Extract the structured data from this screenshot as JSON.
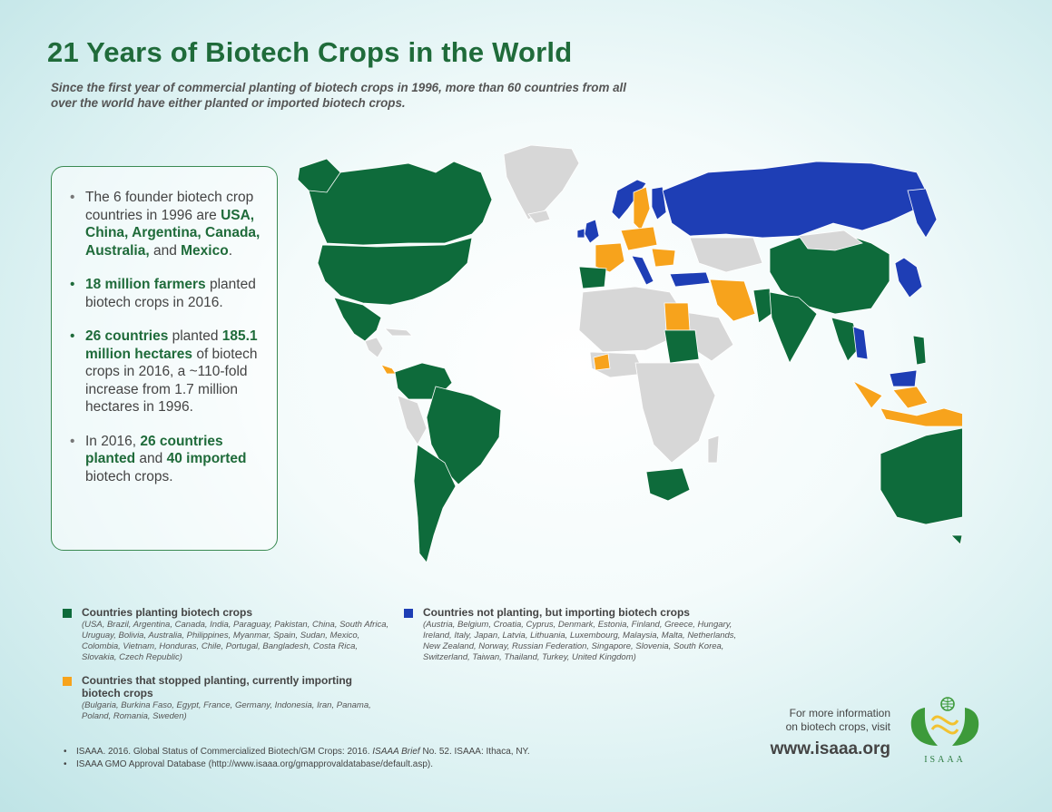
{
  "title": "21 Years of Biotech Crops in the World",
  "subtitle": "Since the first year of commercial planting of biotech crops in 1996, more than 60 countries from all over the world have either planted or imported biotech crops.",
  "facts": {
    "f1_a": "The 6 founder biotech crop countries in 1996 are ",
    "f1_b": "USA, China, Argentina, Canada, Australia,",
    "f1_c": " and ",
    "f1_d": "Mexico",
    "f1_e": ".",
    "f2_a": "18 million farmers",
    "f2_b": " planted biotech crops in 2016.",
    "f3_a": "26 countries",
    "f3_b": " planted ",
    "f3_c": "185.1 million hectares",
    "f3_d": " of biotech crops in 2016, a ~110-fold increase from 1.7 million hectares in 1996.",
    "f4_a": "In 2016, ",
    "f4_b": "26 countries planted",
    "f4_c": " and ",
    "f4_d": "40 imported",
    "f4_e": " biotech crops."
  },
  "colors": {
    "planting": "#0e6b3b",
    "importing": "#1e3eb5",
    "stopped": "#f7a31c",
    "other": "#d7d7d7",
    "title": "#1f6b3a"
  },
  "legend": {
    "planting": {
      "title": "Countries planting biotech crops",
      "list": "(USA, Brazil, Argentina, Canada, India, Paraguay, Pakistan, China, South Africa, Uruguay, Bolivia, Australia, Philippines, Myanmar, Spain, Sudan, Mexico, Colombia, Vietnam, Honduras, Chile, Portugal, Bangladesh, Costa Rica, Slovakia, Czech Republic)"
    },
    "stopped": {
      "title": "Countries that stopped planting, currently importing biotech crops",
      "list": "(Bulgaria, Burkina Faso, Egypt, France, Germany, Indonesia, Iran, Panama, Poland, Romania, Sweden)"
    },
    "importing": {
      "title": "Countries not planting, but importing biotech crops",
      "list": "(Austria, Belgium, Croatia, Cyprus, Denmark, Estonia, Finland, Greece, Hungary, Ireland, Italy, Japan, Latvia, Lithuania, Luxembourg, Malaysia, Malta, Netherlands, New Zealand, Norway, Russian Federation, Singapore, Slovenia, South Korea, Switzerland, Taiwan, Thailand, Turkey, United Kingdom)"
    }
  },
  "references": {
    "ref1_a": "ISAAA. 2016. Global Status of Commercialized Biotech/GM Crops: 2016. ",
    "ref1_b": "ISAAA Brief",
    "ref1_c": " No. 52. ISAAA: Ithaca, NY.",
    "ref2": "ISAAA GMO Approval Database (http://www.isaaa.org/gmapprovaldatabase/default.asp)."
  },
  "more_info": {
    "line1": "For more information",
    "line2": "on biotech crops, visit",
    "url": "www.isaaa.org"
  },
  "logo_text": "ISAAA"
}
